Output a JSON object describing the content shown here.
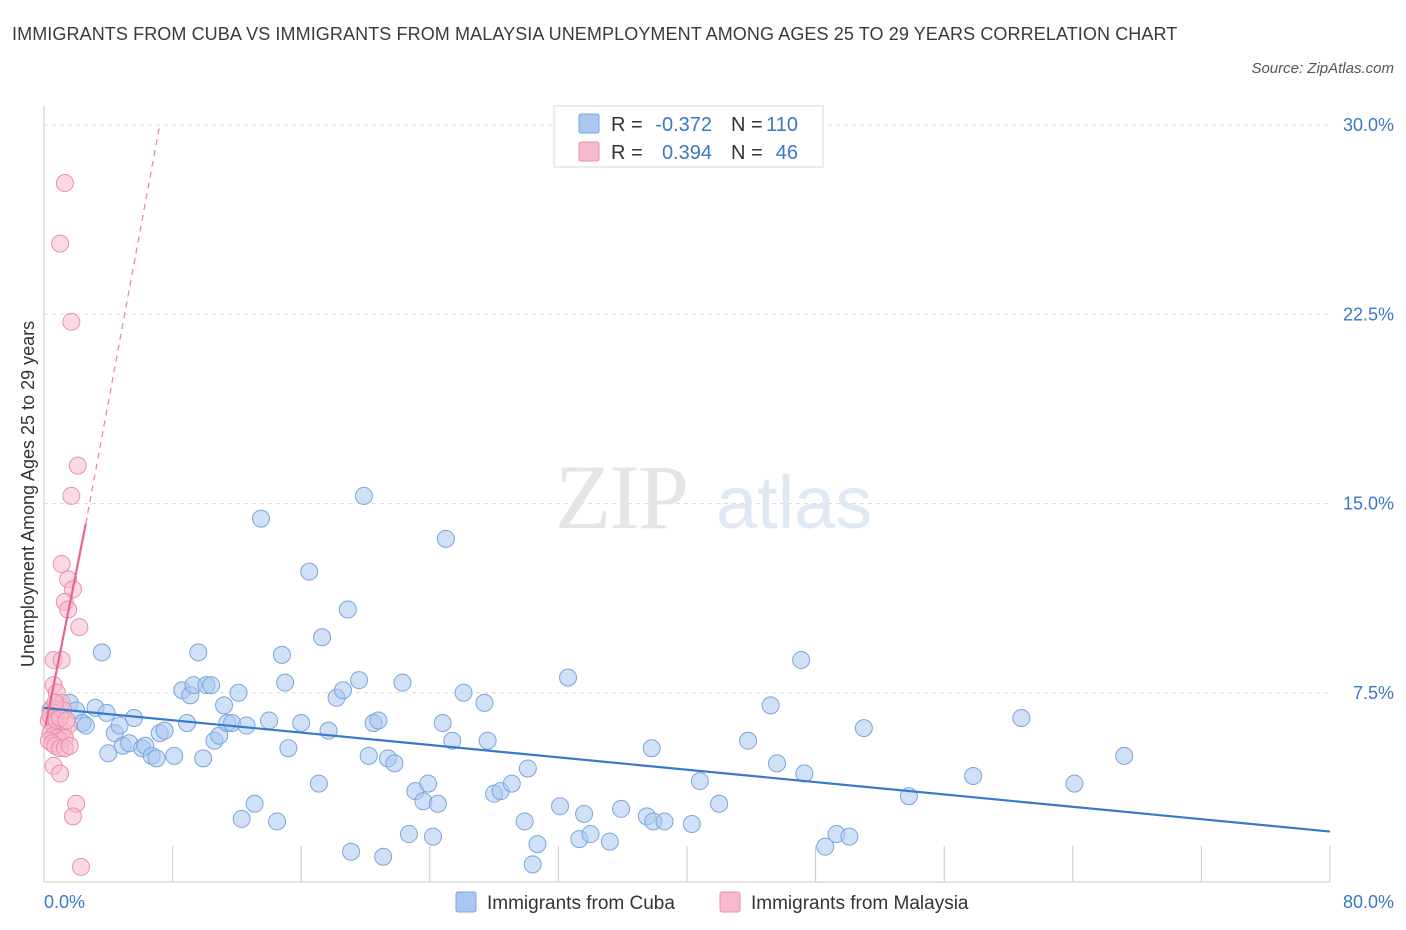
{
  "title": "IMMIGRANTS FROM CUBA VS IMMIGRANTS FROM MALAYSIA UNEMPLOYMENT AMONG AGES 25 TO 29 YEARS CORRELATION CHART",
  "source": "Source: ZipAtlas.com",
  "watermark": {
    "zip": "ZIP",
    "atlas": "atlas"
  },
  "stats": [
    {
      "r_label": "R =",
      "r_value": "-0.372",
      "n_label": "N =",
      "n_value": "110",
      "color": "#a9c8f0",
      "stroke": "#7aa5dc"
    },
    {
      "r_label": "R =",
      "r_value": "0.394",
      "n_label": "N =",
      "n_value": "46",
      "color": "#f7b9cc",
      "stroke": "#ea8fab"
    }
  ],
  "legend": [
    {
      "label": "Immigrants from Cuba",
      "color": "#a9c8f0",
      "stroke": "#7aa5dc"
    },
    {
      "label": "Immigrants from Malaysia",
      "color": "#f7b9cc",
      "stroke": "#ea8fab"
    }
  ],
  "chart_data": {
    "type": "scatter",
    "title": "IMMIGRANTS FROM CUBA VS IMMIGRANTS FROM MALAYSIA UNEMPLOYMENT AMONG AGES 25 TO 29 YEARS CORRELATION CHART",
    "xlabel": "",
    "ylabel": "Unemployment Among Ages 25 to 29 years",
    "xlim": [
      0,
      80
    ],
    "ylim": [
      0,
      30
    ],
    "x_tick_labels": [
      "0.0%",
      "80.0%"
    ],
    "y_ticks": [
      7.5,
      15.0,
      22.5,
      30.0
    ],
    "y_tick_labels": [
      "7.5%",
      "15.0%",
      "22.5%",
      "30.0%"
    ],
    "grid": true,
    "legend_position": "bottom",
    "series": [
      {
        "name": "Immigrants from Cuba",
        "color": "#a9c8f0",
        "stroke": "#7aa5dc",
        "trend": {
          "x": [
            0,
            80
          ],
          "y": [
            6.9,
            2.0
          ],
          "color": "#3a78c9"
        },
        "points": [
          [
            0.4,
            6.8
          ],
          [
            1.0,
            7.0
          ],
          [
            1.6,
            7.1
          ],
          [
            2.0,
            6.8
          ],
          [
            2.4,
            6.3
          ],
          [
            2.6,
            6.2
          ],
          [
            3.2,
            6.9
          ],
          [
            3.6,
            9.1
          ],
          [
            3.9,
            6.7
          ],
          [
            4.0,
            5.1
          ],
          [
            4.4,
            5.9
          ],
          [
            4.7,
            6.2
          ],
          [
            4.9,
            5.4
          ],
          [
            5.3,
            5.5
          ],
          [
            5.6,
            6.5
          ],
          [
            6.1,
            5.3
          ],
          [
            6.3,
            5.4
          ],
          [
            6.7,
            5.0
          ],
          [
            7.0,
            4.9
          ],
          [
            7.2,
            5.9
          ],
          [
            7.5,
            6.0
          ],
          [
            8.1,
            5.0
          ],
          [
            8.6,
            7.6
          ],
          [
            8.9,
            6.3
          ],
          [
            9.1,
            7.4
          ],
          [
            9.3,
            7.8
          ],
          [
            9.6,
            9.1
          ],
          [
            9.9,
            4.9
          ],
          [
            10.1,
            7.8
          ],
          [
            10.4,
            7.8
          ],
          [
            10.6,
            5.6
          ],
          [
            10.9,
            5.8
          ],
          [
            11.2,
            7.0
          ],
          [
            11.4,
            6.3
          ],
          [
            11.7,
            6.3
          ],
          [
            12.1,
            7.5
          ],
          [
            12.3,
            2.5
          ],
          [
            12.6,
            6.2
          ],
          [
            13.1,
            3.1
          ],
          [
            13.5,
            14.4
          ],
          [
            14.0,
            6.4
          ],
          [
            14.5,
            2.4
          ],
          [
            14.8,
            9.0
          ],
          [
            15.0,
            7.9
          ],
          [
            15.2,
            5.3
          ],
          [
            16.0,
            6.3
          ],
          [
            16.5,
            12.3
          ],
          [
            17.1,
            3.9
          ],
          [
            17.3,
            9.7
          ],
          [
            17.7,
            6.0
          ],
          [
            18.2,
            7.3
          ],
          [
            18.6,
            7.6
          ],
          [
            18.9,
            10.8
          ],
          [
            19.1,
            1.2
          ],
          [
            19.6,
            8.0
          ],
          [
            19.9,
            15.3
          ],
          [
            20.2,
            5.0
          ],
          [
            20.5,
            6.3
          ],
          [
            20.8,
            6.4
          ],
          [
            21.1,
            1.0
          ],
          [
            21.4,
            4.9
          ],
          [
            21.8,
            4.7
          ],
          [
            22.3,
            7.9
          ],
          [
            22.7,
            1.9
          ],
          [
            23.1,
            3.6
          ],
          [
            23.6,
            3.2
          ],
          [
            23.9,
            3.9
          ],
          [
            24.2,
            1.8
          ],
          [
            24.5,
            3.1
          ],
          [
            24.8,
            6.3
          ],
          [
            25.0,
            13.6
          ],
          [
            25.4,
            5.6
          ],
          [
            26.1,
            7.5
          ],
          [
            27.4,
            7.1
          ],
          [
            27.6,
            5.6
          ],
          [
            28.0,
            3.5
          ],
          [
            28.4,
            3.6
          ],
          [
            29.1,
            3.9
          ],
          [
            29.9,
            2.4
          ],
          [
            30.1,
            4.5
          ],
          [
            30.4,
            0.7
          ],
          [
            30.7,
            1.5
          ],
          [
            32.1,
            3.0
          ],
          [
            32.6,
            8.1
          ],
          [
            33.3,
            1.7
          ],
          [
            33.6,
            2.7
          ],
          [
            34.0,
            1.9
          ],
          [
            35.2,
            1.6
          ],
          [
            35.9,
            2.9
          ],
          [
            37.5,
            2.6
          ],
          [
            37.9,
            2.4
          ],
          [
            37.8,
            5.3
          ],
          [
            38.6,
            2.4
          ],
          [
            40.3,
            2.3
          ],
          [
            40.8,
            4.0
          ],
          [
            42.0,
            3.1
          ],
          [
            43.8,
            5.6
          ],
          [
            45.2,
            7.0
          ],
          [
            45.6,
            4.7
          ],
          [
            47.1,
            8.8
          ],
          [
            47.3,
            4.3
          ],
          [
            49.3,
            1.9
          ],
          [
            50.1,
            1.8
          ],
          [
            51.0,
            6.1
          ],
          [
            53.8,
            3.4
          ],
          [
            57.8,
            4.2
          ],
          [
            60.8,
            6.5
          ],
          [
            64.1,
            3.9
          ],
          [
            67.2,
            5.0
          ],
          [
            48.6,
            1.4
          ]
        ]
      },
      {
        "name": "Immigrants from Malaysia",
        "color": "#f7b9cc",
        "stroke": "#ea8fab",
        "trend": {
          "x": [
            0.1,
            2.6
          ],
          "y": [
            6.2,
            14.2
          ],
          "color": "#e4668f"
        },
        "trend_extension": {
          "x": [
            2.6,
            7.2
          ],
          "y": [
            14.2,
            30.0
          ],
          "color": "#e88aa8"
        },
        "points": [
          [
            1.3,
            27.7
          ],
          [
            1.0,
            25.3
          ],
          [
            1.7,
            22.2
          ],
          [
            2.1,
            16.5
          ],
          [
            1.7,
            15.3
          ],
          [
            1.1,
            12.6
          ],
          [
            1.5,
            12.0
          ],
          [
            1.8,
            11.6
          ],
          [
            1.3,
            11.1
          ],
          [
            1.5,
            10.8
          ],
          [
            2.2,
            10.1
          ],
          [
            0.6,
            8.8
          ],
          [
            1.1,
            8.8
          ],
          [
            0.6,
            7.8
          ],
          [
            0.8,
            7.5
          ],
          [
            1.1,
            7.1
          ],
          [
            0.5,
            6.9
          ],
          [
            0.7,
            6.7
          ],
          [
            1.0,
            6.6
          ],
          [
            0.3,
            6.4
          ],
          [
            0.6,
            6.2
          ],
          [
            0.9,
            6.1
          ],
          [
            1.2,
            6.0
          ],
          [
            1.5,
            6.2
          ],
          [
            0.4,
            5.9
          ],
          [
            0.6,
            5.8
          ],
          [
            0.8,
            5.7
          ],
          [
            1.0,
            5.6
          ],
          [
            1.3,
            5.7
          ],
          [
            0.3,
            5.6
          ],
          [
            0.5,
            5.5
          ],
          [
            0.7,
            5.4
          ],
          [
            1.0,
            5.3
          ],
          [
            1.3,
            5.3
          ],
          [
            1.6,
            5.4
          ],
          [
            0.4,
            6.6
          ],
          [
            0.8,
            6.4
          ],
          [
            1.2,
            6.8
          ],
          [
            1.0,
            6.5
          ],
          [
            0.7,
            7.1
          ],
          [
            0.6,
            4.6
          ],
          [
            1.0,
            4.3
          ],
          [
            2.0,
            3.1
          ],
          [
            1.8,
            2.6
          ],
          [
            2.3,
            0.6
          ],
          [
            1.4,
            6.4
          ]
        ]
      }
    ]
  }
}
